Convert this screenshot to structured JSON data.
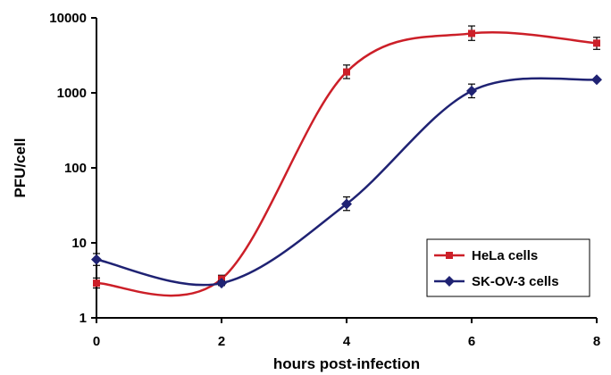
{
  "chart_data": {
    "type": "line",
    "title": "",
    "xlabel": "hours post-infection",
    "ylabel": "PFU/cell",
    "xlim": [
      0,
      8
    ],
    "ylim": [
      1,
      10000
    ],
    "yscale": "log",
    "grid": false,
    "legend_position": "bottom-right",
    "x_ticks": [
      "0",
      "2",
      "4",
      "6",
      "8"
    ],
    "y_ticks": [
      "1",
      "10",
      "100",
      "1000",
      "10000"
    ],
    "series": [
      {
        "name": "HeLa cells",
        "color": "#cc1f28",
        "marker": "square",
        "x": [
          0,
          2,
          4,
          6,
          8
        ],
        "y": [
          2.9,
          3.3,
          1900,
          6200,
          4600
        ],
        "err_low": [
          0.4,
          0.3,
          350,
          1200,
          800
        ],
        "err_high": [
          0.5,
          0.4,
          450,
          1600,
          900
        ]
      },
      {
        "name": "SK-OV-3 cells",
        "color": "#1f2273",
        "marker": "diamond",
        "x": [
          0,
          2,
          4,
          6,
          8
        ],
        "y": [
          6.0,
          2.9,
          33,
          1060,
          1500
        ],
        "err_low": [
          1.0,
          0.2,
          6,
          200,
          0
        ],
        "err_high": [
          1.2,
          0.2,
          8,
          250,
          0
        ]
      }
    ]
  }
}
